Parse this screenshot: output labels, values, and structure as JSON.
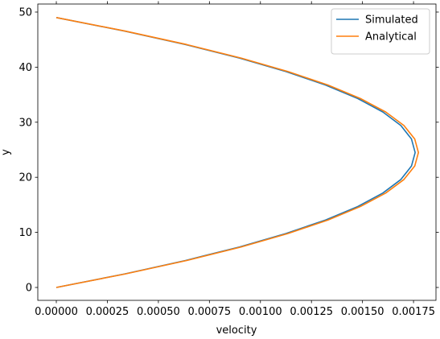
{
  "chart_data": {
    "type": "line",
    "xlabel": "velocity",
    "ylabel": "y",
    "y": [
      0,
      2.45,
      4.9,
      7.35,
      9.8,
      12.25,
      14.7,
      17.15,
      19.6,
      22.05,
      24.5,
      26.95,
      29.4,
      31.85,
      34.3,
      36.75,
      39.2,
      41.65,
      44.1,
      46.55,
      49
    ],
    "series": [
      {
        "name": "Simulated",
        "color": "#1f77b4",
        "values": [
          0,
          0.000334,
          0.000633,
          0.000897,
          0.001125,
          0.001319,
          0.001477,
          0.0016,
          0.001688,
          0.00174,
          0.001758,
          0.00174,
          0.001688,
          0.0016,
          0.001477,
          0.001319,
          0.001125,
          0.000897,
          0.000633,
          0.000334,
          0
        ]
      },
      {
        "name": "Analytical",
        "color": "#ff7f0e",
        "values": [
          0,
          0.000337,
          0.000639,
          0.000905,
          0.001135,
          0.001331,
          0.00149,
          0.001614,
          0.001703,
          0.001756,
          0.001774,
          0.001756,
          0.001703,
          0.001614,
          0.00149,
          0.001331,
          0.001135,
          0.000905,
          0.000639,
          0.000337,
          0
        ]
      }
    ],
    "xlim": [
      -9.07e-05,
      0.00186
    ],
    "xticks": [
      {
        "value": 0,
        "label": "0.00000"
      },
      {
        "value": 0.00025,
        "label": "0.00025"
      },
      {
        "value": 0.0005,
        "label": "0.00050"
      },
      {
        "value": 0.00075,
        "label": "0.00075"
      },
      {
        "value": 0.001,
        "label": "0.00100"
      },
      {
        "value": 0.00125,
        "label": "0.00125"
      },
      {
        "value": 0.0015,
        "label": "0.00150"
      },
      {
        "value": 0.00175,
        "label": "0.00175"
      }
    ],
    "ylim": [
      -2.34,
      51.46
    ],
    "yticks": [
      0,
      10,
      20,
      30,
      40,
      50
    ],
    "legend": "upper right"
  }
}
